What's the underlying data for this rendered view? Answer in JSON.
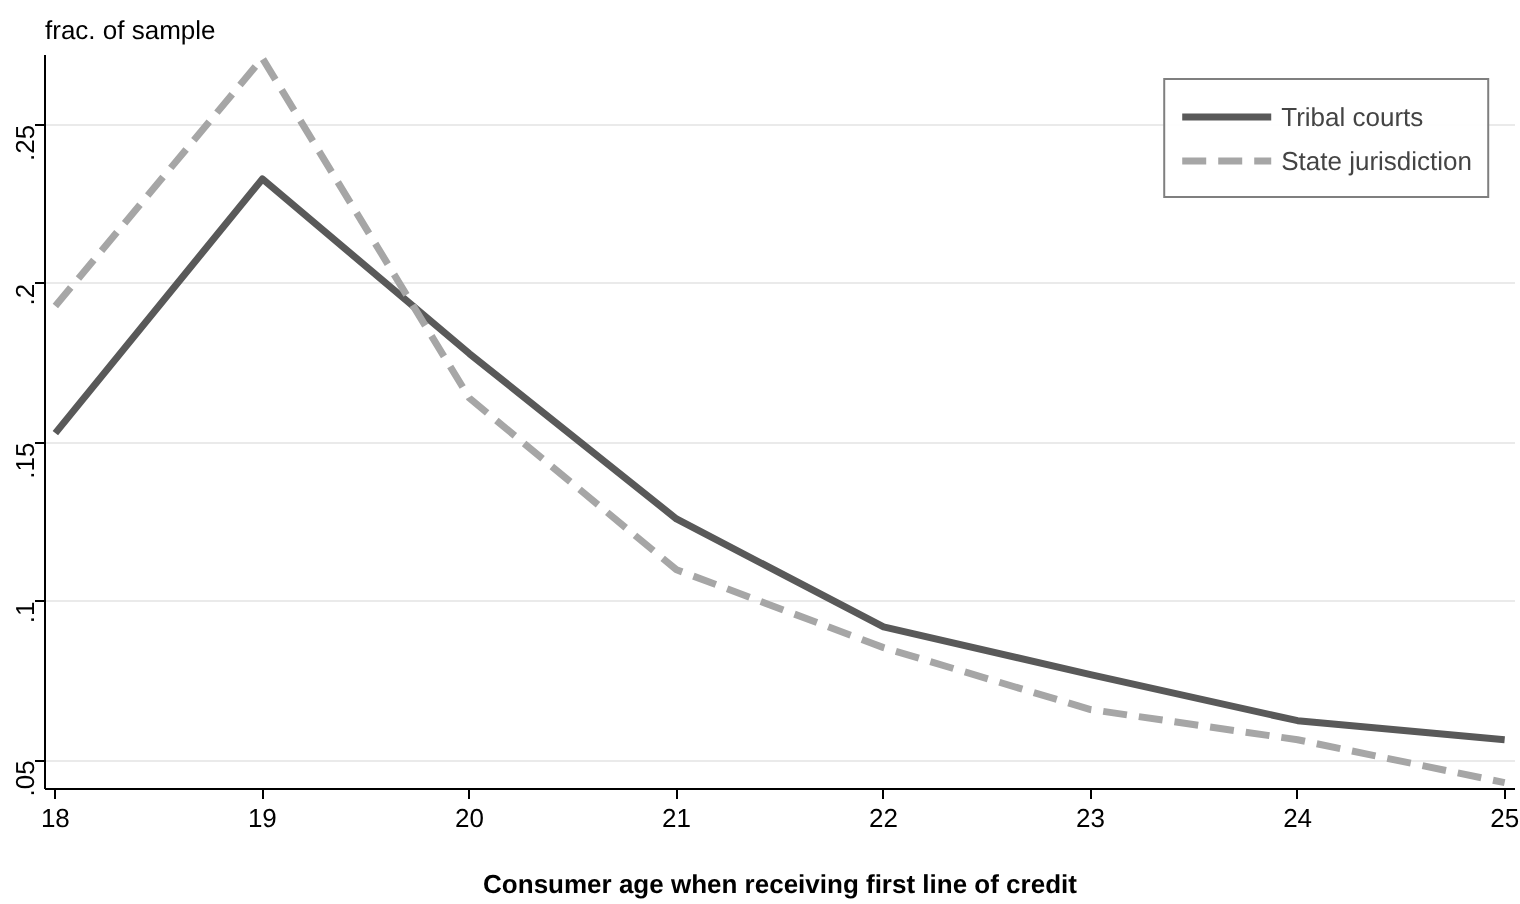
{
  "chart_data": {
    "type": "line",
    "xlabel": "Consumer age when receiving first line of credit",
    "ylabel": "frac. of sample",
    "x": [
      18,
      19,
      20,
      21,
      22,
      23,
      24,
      25
    ],
    "series": [
      {
        "name": "Tribal courts",
        "color": "#595959",
        "line_style": "solid",
        "values": [
          0.153,
          0.233,
          0.178,
          0.126,
          0.092,
          0.077,
          0.0625,
          0.0565
        ]
      },
      {
        "name": "State jurisdiction",
        "color": "#a6a6a6",
        "line_style": "dashed",
        "values": [
          0.193,
          0.271,
          0.164,
          0.11,
          0.0855,
          0.066,
          0.0565,
          0.043
        ]
      }
    ],
    "xlim": [
      17.95,
      25.05
    ],
    "ylim": [
      0.041,
      0.272
    ],
    "xticks": [
      18,
      19,
      20,
      21,
      22,
      23,
      24,
      25
    ],
    "yticks": [
      {
        "value": 0.05,
        "label": ".05"
      },
      {
        "value": 0.1,
        "label": ".1"
      },
      {
        "value": 0.15,
        "label": ".15"
      },
      {
        "value": 0.2,
        "label": ".2"
      },
      {
        "value": 0.25,
        "label": ".25"
      }
    ],
    "grid": "y",
    "legend": "top right",
    "marker": "none"
  }
}
